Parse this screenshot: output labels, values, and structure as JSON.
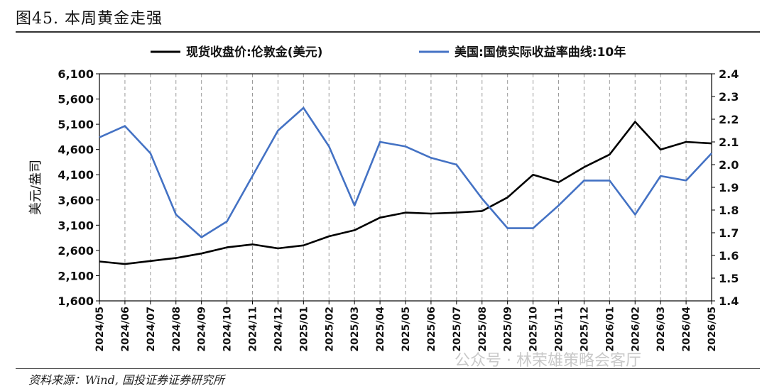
{
  "figure_title": "图45. 本周黄金走强",
  "source_note": "资料来源：Wind, 国投证券证券研究所",
  "watermark": "公众号 · 林荣雄策略会客厅",
  "chart_data": {
    "type": "line",
    "title": "",
    "legend_position": "top",
    "ylabel_left": "美元/盎司",
    "ylabel_right": "",
    "left_axis": {
      "min": 1600,
      "max": 6100,
      "ticks": [
        "6,100",
        "5,600",
        "5,100",
        "4,600",
        "4,100",
        "3,600",
        "3,100",
        "2,600",
        "2,100",
        "1,600"
      ]
    },
    "right_axis": {
      "min": 1.4,
      "max": 2.4,
      "ticks": [
        "2.4",
        "2.3",
        "2.2",
        "2.1",
        "2.0",
        "1.9",
        "1.8",
        "1.7",
        "1.6",
        "1.5",
        "1.4"
      ]
    },
    "x_range": [
      "2024/05",
      "2026/05"
    ],
    "x_tick_labels": [
      "2024/05",
      "2024/06",
      "2024/07",
      "2024/08",
      "2024/09",
      "2024/10",
      "2024/11",
      "2024/12",
      "2025/01",
      "2025/02",
      "2025/03",
      "2025/04",
      "2025/05",
      "2025/06",
      "2025/07",
      "2025/08",
      "2025/09",
      "2025/10",
      "2025/11",
      "2025/12",
      "2026/01",
      "2026/02",
      "2026/03",
      "2026/04",
      "2026/05"
    ],
    "grid": "vertical dashed",
    "colors": {
      "gold": "#000000",
      "yield": "#4472c4"
    },
    "series": [
      {
        "name": "现货收盘价:伦敦金(美元)",
        "axis": "left",
        "x": [
          "2024/05",
          "2024/06",
          "2024/07",
          "2024/08",
          "2024/09",
          "2024/10",
          "2024/11",
          "2024/12",
          "2025/01",
          "2025/02",
          "2025/03",
          "2025/04",
          "2025/05",
          "2025/06",
          "2025/07",
          "2025/08",
          "2025/09",
          "2025/10",
          "2025/11",
          "2025/12",
          "2026/01",
          "2026/02",
          "2026/03",
          "2026/04",
          "2026/05"
        ],
        "values": [
          2380,
          2330,
          2390,
          2450,
          2540,
          2660,
          2720,
          2640,
          2700,
          2880,
          3000,
          3250,
          3350,
          3330,
          3350,
          3380,
          3650,
          4100,
          3950,
          4250,
          4500,
          5150,
          4600,
          4750,
          4720
        ]
      },
      {
        "name": "美国:国债实际收益率曲线:10年",
        "axis": "right",
        "x": [
          "2024/05",
          "2024/06",
          "2024/07",
          "2024/08",
          "2024/09",
          "2024/10",
          "2024/11",
          "2024/12",
          "2025/01",
          "2025/02",
          "2025/03",
          "2025/04",
          "2025/05",
          "2025/06",
          "2025/07",
          "2025/08",
          "2025/09",
          "2025/10",
          "2025/11",
          "2025/12",
          "2026/01",
          "2026/02",
          "2026/03",
          "2026/04",
          "2026/05"
        ],
        "values": [
          2.12,
          2.17,
          2.05,
          1.78,
          1.68,
          1.75,
          1.95,
          2.15,
          2.25,
          2.08,
          1.82,
          2.1,
          2.08,
          2.03,
          2.0,
          1.85,
          1.72,
          1.72,
          1.82,
          1.93,
          1.93,
          1.78,
          1.95,
          1.93,
          2.05
        ]
      }
    ]
  }
}
